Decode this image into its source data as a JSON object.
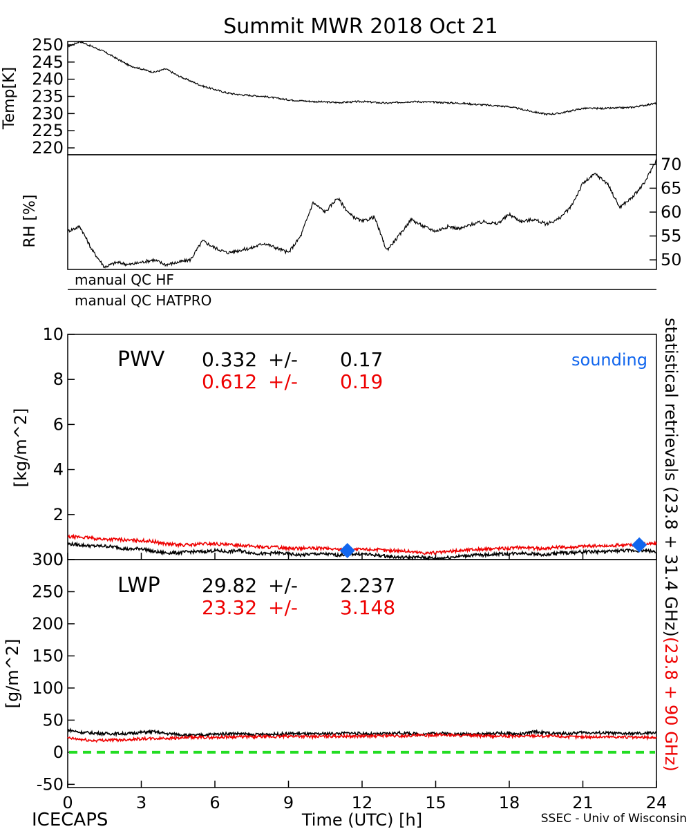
{
  "title": "Summit MWR 2018 Oct 21",
  "footer": {
    "left": "ICECAPS",
    "center": "Time (UTC) [h]",
    "right": "SSEC - Univ of Wisconsin"
  },
  "qc": {
    "hf_label": "manual QC HF",
    "hatpro_label": "manual QC HATPRO"
  },
  "side_labels": {
    "black": "statistical retrievals (23.8 + 31.4 GHz)",
    "red": "(23.8 + 90 GHz)"
  },
  "colors": {
    "black_series": "#000000",
    "red_series": "#ee0000",
    "sounding": "#1166ee",
    "zero_line": "#22dd22"
  },
  "chart_data": [
    {
      "id": "temp",
      "type": "line",
      "ylabel": "Temp[K]",
      "xlim": [
        0,
        24
      ],
      "ylim": [
        218,
        251
      ],
      "yticks": [
        220,
        225,
        230,
        235,
        240,
        245,
        250
      ],
      "series": [
        {
          "color": "black",
          "x": [
            0,
            0.5,
            1,
            1.5,
            2,
            2.5,
            3,
            3.5,
            4,
            4.5,
            5,
            5.5,
            6,
            6.5,
            7,
            8,
            9,
            10,
            11,
            12,
            13,
            14,
            15,
            16,
            17,
            18,
            19,
            19.5,
            20,
            21,
            22,
            23,
            24
          ],
          "y": [
            249.5,
            251,
            249.5,
            248,
            246,
            244,
            243,
            242,
            243,
            241,
            239.5,
            238,
            237,
            236,
            235.5,
            235,
            234,
            233.5,
            233.2,
            233.5,
            233,
            233.5,
            233.3,
            233,
            232.5,
            232,
            230.5,
            229.8,
            230,
            231.5,
            231.5,
            231.8,
            233
          ]
        }
      ]
    },
    {
      "id": "rh",
      "type": "line",
      "ylabel": "RH [%]",
      "xlim": [
        0,
        24
      ],
      "ylim": [
        48,
        72
      ],
      "yticks": [
        50,
        55,
        60,
        65,
        70
      ],
      "series": [
        {
          "color": "black",
          "x": [
            0,
            0.5,
            1,
            1.5,
            2,
            2.5,
            3,
            3.5,
            4,
            4.5,
            5,
            5.5,
            6,
            6.5,
            7,
            7.5,
            8,
            8.5,
            9,
            9.5,
            10,
            10.5,
            11,
            11.5,
            12,
            12.5,
            13,
            13.5,
            14,
            14.5,
            15,
            15.5,
            16,
            16.5,
            17,
            17.5,
            18,
            18.5,
            19,
            19.5,
            20,
            20.5,
            21,
            21.5,
            22,
            22.5,
            23,
            23.5,
            24
          ],
          "y": [
            56,
            57,
            52,
            48.5,
            49.5,
            49,
            49.5,
            50,
            49,
            49.5,
            50,
            54,
            52.5,
            51.5,
            52,
            52.5,
            53.5,
            52.5,
            51.5,
            55,
            62,
            60,
            63,
            59.5,
            58,
            59,
            52,
            55,
            58.5,
            57,
            56,
            57,
            56.5,
            57.5,
            58,
            57.5,
            59.5,
            58,
            58.5,
            57.5,
            58.5,
            61,
            66,
            68,
            66,
            61,
            63,
            66,
            71
          ]
        }
      ]
    },
    {
      "id": "pwv",
      "type": "line",
      "title": "PWV",
      "ylabel": "[kg/m^2]",
      "xlim": [
        0,
        24
      ],
      "ylim": [
        0,
        10
      ],
      "yticks": [
        0,
        2,
        4,
        6,
        8,
        10
      ],
      "stats": [
        {
          "color": "black",
          "mean": "0.332",
          "pm": "+/-",
          "sd": "0.17"
        },
        {
          "color": "red",
          "mean": "0.612",
          "pm": "+/-",
          "sd": "0.19"
        }
      ],
      "legend": {
        "sounding": "sounding"
      },
      "series": [
        {
          "color": "black",
          "x": [
            0,
            0.5,
            1,
            1.5,
            2,
            2.5,
            3,
            3.5,
            4,
            4.5,
            5,
            5.5,
            6,
            6.5,
            7,
            7.5,
            8,
            8.5,
            9,
            9.5,
            10,
            10.5,
            11,
            11.5,
            12,
            12.5,
            13,
            13.5,
            14,
            14.5,
            15,
            15.5,
            16,
            16.5,
            17,
            17.5,
            18,
            18.5,
            19,
            19.5,
            20,
            20.5,
            21,
            21.5,
            22,
            22.5,
            23,
            23.5,
            24
          ],
          "y": [
            0.7,
            0.65,
            0.6,
            0.6,
            0.55,
            0.45,
            0.5,
            0.35,
            0.3,
            0.3,
            0.35,
            0.35,
            0.4,
            0.35,
            0.4,
            0.3,
            0.25,
            0.3,
            0.25,
            0.2,
            0.25,
            0.25,
            0.2,
            0.25,
            0.25,
            0.2,
            0.15,
            0.1,
            0.1,
            0.1,
            0.05,
            0.1,
            0.15,
            0.2,
            0.2,
            0.25,
            0.25,
            0.3,
            0.25,
            0.2,
            0.3,
            0.3,
            0.35,
            0.35,
            0.35,
            0.4,
            0.4,
            0.4,
            0.35
          ]
        },
        {
          "color": "red",
          "x": [
            0,
            0.5,
            1,
            1.5,
            2,
            2.5,
            3,
            3.5,
            4,
            4.5,
            5,
            5.5,
            6,
            6.5,
            7,
            7.5,
            8,
            8.5,
            9,
            9.5,
            10,
            10.5,
            11,
            11.5,
            12,
            12.5,
            13,
            13.5,
            14,
            14.5,
            15,
            15.5,
            16,
            16.5,
            17,
            17.5,
            18,
            18.5,
            19,
            19.5,
            20,
            20.5,
            21,
            21.5,
            22,
            22.5,
            23,
            23.5,
            24
          ],
          "y": [
            1.0,
            1.0,
            0.95,
            0.9,
            0.9,
            0.85,
            0.85,
            0.8,
            0.7,
            0.65,
            0.65,
            0.7,
            0.7,
            0.65,
            0.65,
            0.6,
            0.55,
            0.55,
            0.5,
            0.5,
            0.5,
            0.5,
            0.45,
            0.45,
            0.45,
            0.45,
            0.4,
            0.4,
            0.35,
            0.3,
            0.3,
            0.35,
            0.4,
            0.45,
            0.45,
            0.5,
            0.5,
            0.55,
            0.5,
            0.5,
            0.55,
            0.55,
            0.6,
            0.6,
            0.6,
            0.65,
            0.65,
            0.7,
            0.7
          ]
        }
      ],
      "sounding_points": [
        {
          "x": 11.4,
          "y": 0.4
        },
        {
          "x": 23.3,
          "y": 0.65
        }
      ]
    },
    {
      "id": "lwp",
      "type": "line",
      "title": "LWP",
      "xlabel": "Time (UTC) [h]",
      "ylabel": "[g/m^2]",
      "xlim": [
        0,
        24
      ],
      "xticks": [
        0,
        3,
        6,
        9,
        12,
        15,
        18,
        21,
        24
      ],
      "ylim": [
        -55,
        300
      ],
      "yticks": [
        -50,
        0,
        50,
        100,
        150,
        200,
        250,
        300
      ],
      "stats": [
        {
          "color": "black",
          "mean": "29.82",
          "pm": "+/-",
          "sd": "2.237"
        },
        {
          "color": "red",
          "mean": "23.32",
          "pm": "+/-",
          "sd": "3.148"
        }
      ],
      "zero_line": 0,
      "series": [
        {
          "color": "black",
          "x": [
            0,
            0.5,
            1,
            1.5,
            2,
            2.5,
            3,
            3.5,
            4,
            4.5,
            5,
            5.5,
            6,
            6.5,
            7,
            7.5,
            8,
            8.5,
            9,
            9.5,
            10,
            10.5,
            11,
            11.5,
            12,
            12.5,
            13,
            13.5,
            14,
            14.5,
            15,
            15.5,
            16,
            16.5,
            17,
            17.5,
            18,
            18.5,
            19,
            19.5,
            20,
            20.5,
            21,
            21.5,
            22,
            22.5,
            23,
            23.5,
            24
          ],
          "y": [
            35,
            31,
            30,
            29,
            29,
            29,
            31,
            32,
            29,
            28,
            26,
            27,
            28,
            29,
            29,
            27,
            28,
            28,
            29,
            29,
            28,
            29,
            29,
            30,
            29,
            28,
            29,
            30,
            29,
            28,
            30,
            29,
            28,
            29,
            28,
            30,
            29,
            28,
            32,
            30,
            29,
            29,
            31,
            30,
            30,
            29,
            29,
            29,
            31
          ]
        },
        {
          "color": "red",
          "x": [
            0,
            0.5,
            1,
            1.5,
            2,
            2.5,
            3,
            3.5,
            4,
            4.5,
            5,
            5.5,
            6,
            6.5,
            7,
            7.5,
            8,
            8.5,
            9,
            9.5,
            10,
            10.5,
            11,
            11.5,
            12,
            12.5,
            13,
            13.5,
            14,
            14.5,
            15,
            15.5,
            16,
            16.5,
            17,
            17.5,
            18,
            18.5,
            19,
            19.5,
            20,
            20.5,
            21,
            21.5,
            22,
            22.5,
            23,
            23.5,
            24
          ],
          "y": [
            22,
            20,
            18,
            19,
            19,
            20,
            21,
            21,
            22,
            22,
            23,
            23,
            23,
            24,
            24,
            24,
            24,
            24,
            25,
            25,
            24,
            25,
            25,
            25,
            25,
            25,
            26,
            25,
            26,
            26,
            27,
            27,
            26,
            26,
            25,
            25,
            25,
            25,
            26,
            25,
            25,
            24,
            24,
            24,
            24,
            24,
            23,
            23,
            23
          ]
        }
      ]
    }
  ]
}
